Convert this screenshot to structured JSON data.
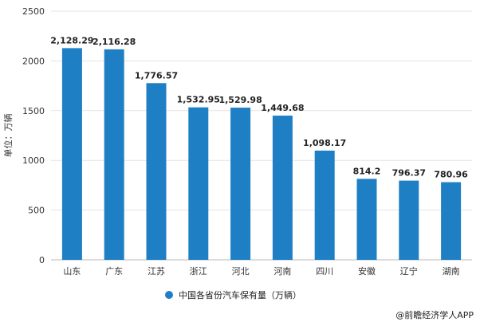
{
  "chart_data": {
    "type": "bar",
    "categories": [
      "山东",
      "广东",
      "江苏",
      "浙江",
      "河北",
      "河南",
      "四川",
      "安徽",
      "辽宁",
      "湖南"
    ],
    "series": [
      {
        "name": "中国各省份汽车保有量（万辆）",
        "values": [
          2128.29,
          2116.28,
          1776.57,
          1532.95,
          1529.98,
          1449.68,
          1098.17,
          814.2,
          796.37,
          780.96
        ],
        "value_labels": [
          "2,128.29",
          "2,116.28",
          "1,776.57",
          "1,532.95",
          "1,529.98",
          "1,449.68",
          "1,098.17",
          "814.2",
          "796.37",
          "780.96"
        ]
      }
    ],
    "ylabel": "单位：万辆",
    "ylim": [
      0,
      2500
    ],
    "yticks": [
      0,
      500,
      1000,
      1500,
      2000,
      2500
    ],
    "grid": true,
    "legend_position": "bottom",
    "bar_color": "#1F7FC4"
  },
  "credit": "@前瞻经济学人APP"
}
